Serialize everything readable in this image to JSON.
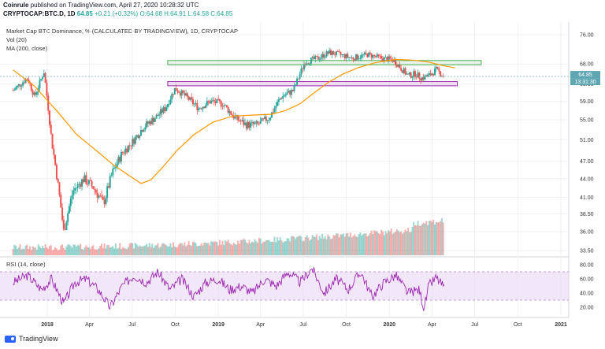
{
  "header": {
    "author": "Coinrule",
    "published_text": "published on TradingView.com, April 27, 2020 10:28:32 UTC",
    "symbol_line_symbol": "CRYPTOCAP:BTC.D, 1D",
    "symbol_line_last": "64.85",
    "symbol_line_change": "+0.21 (+0.32%)",
    "symbol_line_ohlc": "O:64.68 H:64.91 L:64.58 C:64.85"
  },
  "legend": {
    "title": "Market Cap BTC Dominance, % (CALCULATED BY TRADINGVIEW), 1D, CRYPTOCAP",
    "vol": "Vol (20)",
    "ma": "MA (200, close)",
    "rsi": "RSI (14, close)"
  },
  "footer": {
    "brand": "TradingView"
  },
  "colors": {
    "up": "#26a69a",
    "down": "#ef5350",
    "ma": "#ff9800",
    "rsi": "#9c27b0",
    "rsi_band": "#ead7f3",
    "green_zone": "#4caf50",
    "purple_zone": "#9c27b0",
    "price_badge": "#5fa6b3"
  },
  "chart_data": [
    {
      "type": "candlestick",
      "title": "Market Cap BTC Dominance, % (CALCULATED BY TRADINGVIEW), 1D, CRYPTOCAP",
      "y_ticks": [
        "76.00",
        "68.00",
        "63.00",
        "59.00",
        "55.00",
        "51.00",
        "47.00",
        "44.00",
        "41.00",
        "38.50",
        "36.00",
        "33.50"
      ],
      "x_ticks": [
        "2018",
        "Apr",
        "Jul",
        "Oct",
        "2019",
        "Apr",
        "Jul",
        "Oct",
        "2020",
        "Apr",
        "Jul",
        "Oct",
        "2021"
      ],
      "last_price": "64.85",
      "countdown": "13:31:30",
      "series": [
        {
          "name": "price",
          "x": [
            "2017-10-20",
            "2017-11-20",
            "2017-12-05",
            "2017-12-25",
            "2018-01-10",
            "2018-02-05",
            "2018-02-25",
            "2018-03-20",
            "2018-04-10",
            "2018-05-01",
            "2018-05-20",
            "2018-06-10",
            "2018-07-01",
            "2018-07-25",
            "2018-08-20",
            "2018-09-10",
            "2018-10-01",
            "2018-10-25",
            "2018-11-20",
            "2018-12-15",
            "2019-01-10",
            "2019-02-05",
            "2019-03-01",
            "2019-03-25",
            "2019-04-20",
            "2019-05-15",
            "2019-06-10",
            "2019-07-05",
            "2019-08-01",
            "2019-08-25",
            "2019-09-15",
            "2019-10-15",
            "2019-11-15",
            "2019-12-15",
            "2020-01-10",
            "2020-01-25",
            "2020-02-10",
            "2020-02-25",
            "2020-03-10",
            "2020-03-25",
            "2020-04-10",
            "2020-04-27"
          ],
          "values": [
            61.5,
            64.5,
            60.0,
            66.0,
            51.0,
            36.0,
            42.0,
            44.0,
            42.5,
            40.0,
            45.0,
            48.5,
            50.5,
            53.5,
            55.5,
            57.5,
            62.0,
            60.0,
            57.5,
            59.0,
            58.5,
            55.5,
            54.0,
            54.0,
            55.5,
            60.0,
            61.5,
            68.5,
            69.5,
            71.0,
            70.5,
            69.5,
            70.5,
            69.5,
            69.0,
            67.0,
            65.0,
            65.5,
            64.5,
            65.0,
            66.5,
            64.85
          ]
        },
        {
          "name": "MA (200, close)",
          "x": [
            "2017-10-20",
            "2017-12-05",
            "2018-01-25",
            "2018-03-05",
            "2018-04-15",
            "2018-05-20",
            "2018-06-25",
            "2018-07-20",
            "2018-08-10",
            "2018-09-05",
            "2018-10-05",
            "2018-11-10",
            "2018-12-20",
            "2019-02-01",
            "2019-03-15",
            "2019-04-25",
            "2019-05-25",
            "2019-06-25",
            "2019-07-25",
            "2019-08-25",
            "2019-09-25",
            "2019-10-25",
            "2019-12-01",
            "2020-01-15",
            "2020-02-20",
            "2020-03-25",
            "2020-04-27",
            "2020-05-20"
          ],
          "values": [
            66.5,
            62.5,
            56.5,
            52.0,
            49.0,
            46.5,
            44.5,
            43.2,
            43.8,
            46.0,
            49.0,
            52.0,
            54.5,
            55.8,
            56.0,
            56.2,
            57.0,
            58.5,
            61.0,
            63.5,
            65.5,
            67.0,
            68.3,
            69.2,
            69.0,
            68.5,
            67.5,
            67.0
          ]
        }
      ],
      "zones": [
        {
          "name": "resistance",
          "from": "2018-09-15",
          "to": "2020-07-15",
          "low": 67.8,
          "high": 68.9,
          "color": "#4caf50"
        },
        {
          "name": "support",
          "from": "2018-09-15",
          "to": "2020-05-25",
          "low": 62.6,
          "high": 63.6,
          "color": "#9c27b0"
        }
      ]
    },
    {
      "type": "bar",
      "name": "Vol (20)",
      "note": "volume histogram drawn with the price pane"
    },
    {
      "type": "line",
      "title": "RSI (14, close)",
      "y_ticks": [
        "80.00",
        "60.00",
        "40.00",
        "20.00"
      ],
      "band": [
        30,
        70
      ],
      "x": [
        "2017-10-20",
        "2017-11-20",
        "2017-12-20",
        "2018-01-10",
        "2018-02-05",
        "2018-03-01",
        "2018-03-25",
        "2018-04-20",
        "2018-05-15",
        "2018-06-10",
        "2018-07-05",
        "2018-08-01",
        "2018-08-25",
        "2018-09-20",
        "2018-10-15",
        "2018-11-10",
        "2018-12-05",
        "2019-01-01",
        "2019-01-25",
        "2019-02-20",
        "2019-03-15",
        "2019-04-10",
        "2019-05-05",
        "2019-05-30",
        "2019-06-25",
        "2019-07-20",
        "2019-08-15",
        "2019-09-10",
        "2019-10-05",
        "2019-11-01",
        "2019-11-25",
        "2019-12-20",
        "2020-01-15",
        "2020-02-10",
        "2020-03-05",
        "2020-03-15",
        "2020-03-25",
        "2020-04-10",
        "2020-04-27"
      ],
      "values": [
        55,
        65,
        45,
        60,
        25,
        55,
        60,
        45,
        20,
        50,
        65,
        55,
        70,
        45,
        60,
        35,
        55,
        60,
        45,
        50,
        40,
        60,
        50,
        70,
        55,
        75,
        40,
        60,
        45,
        70,
        35,
        55,
        65,
        40,
        45,
        18,
        50,
        62,
        48
      ]
    }
  ]
}
